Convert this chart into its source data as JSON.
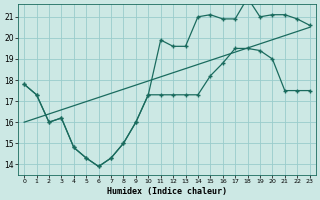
{
  "xlabel": "Humidex (Indice chaleur)",
  "background_color": "#cce8e4",
  "grid_color": "#99cccc",
  "line_color": "#1a6b5e",
  "xlim": [
    -0.5,
    23.5
  ],
  "ylim": [
    13.5,
    21.6
  ],
  "yticks": [
    14,
    15,
    16,
    17,
    18,
    19,
    20,
    21
  ],
  "xticks": [
    0,
    1,
    2,
    3,
    4,
    5,
    6,
    7,
    8,
    9,
    10,
    11,
    12,
    13,
    14,
    15,
    16,
    17,
    18,
    19,
    20,
    21,
    22,
    23
  ],
  "series_bottom_x": [
    0,
    1,
    2,
    3,
    4,
    5,
    6,
    7,
    8,
    9,
    10,
    11,
    12,
    13,
    14,
    15,
    16,
    17,
    18,
    19,
    20,
    21,
    22,
    23
  ],
  "series_bottom_y": [
    17.8,
    17.3,
    16.0,
    16.2,
    14.8,
    14.3,
    13.9,
    14.3,
    15.0,
    16.0,
    17.3,
    17.3,
    17.3,
    17.3,
    17.3,
    18.2,
    18.8,
    19.5,
    19.5,
    19.4,
    19.0,
    17.5,
    17.5,
    17.5
  ],
  "series_top_x": [
    0,
    1,
    2,
    3,
    4,
    5,
    6,
    7,
    8,
    9,
    10,
    11,
    12,
    13,
    14,
    15,
    16,
    17,
    18,
    19,
    20,
    21,
    22,
    23
  ],
  "series_top_y": [
    17.8,
    17.3,
    16.0,
    16.2,
    14.8,
    14.3,
    13.9,
    14.3,
    15.0,
    16.0,
    17.3,
    19.9,
    19.6,
    19.6,
    21.0,
    21.1,
    20.9,
    20.9,
    21.9,
    21.0,
    21.1,
    21.1,
    20.9,
    20.6
  ],
  "series_trend_x": [
    0,
    23
  ],
  "series_trend_y": [
    16.0,
    20.5
  ],
  "marker": "+",
  "markersize": 3,
  "linewidth": 0.9
}
